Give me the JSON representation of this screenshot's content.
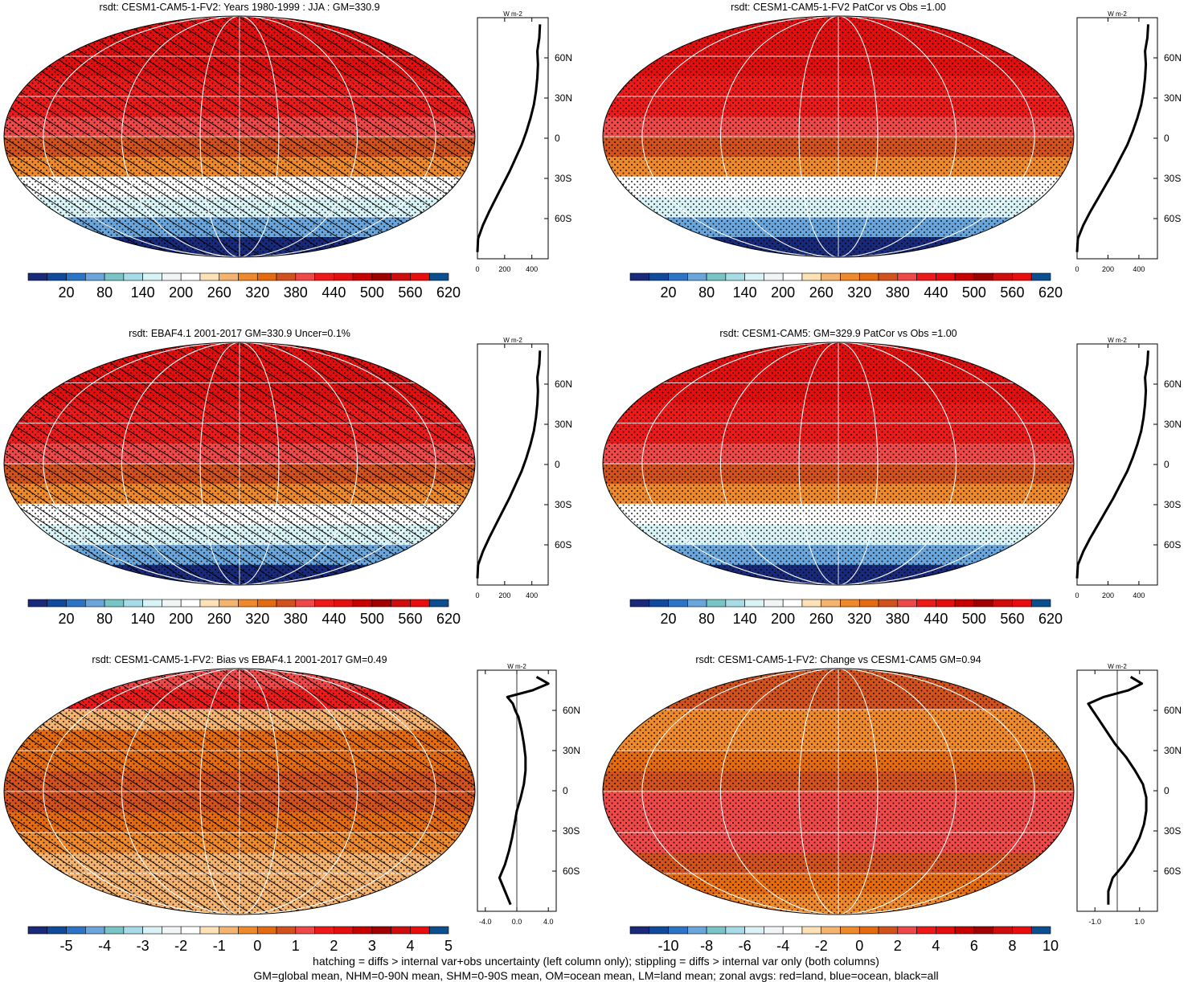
{
  "footnotes": [
    "hatching = diffs > internal var+obs uncertainty (left column only); stippling = diffs > internal var only (both columns)",
    "GM=global mean, NHM=0-90N mean, SHM=0-90S mean, OM=ocean mean, LM=land mean; zonal avgs: red=land, blue=ocean, black=all"
  ],
  "colors": {
    "abs_scale": [
      "#1a2a7a",
      "#0f4a9c",
      "#2c74c5",
      "#6aa6dc",
      "#79c4c6",
      "#a8dbe8",
      "#d8f2f5",
      "#f1f5f6",
      "#ffffff",
      "#fde1b7",
      "#f5b370",
      "#ef8a2c",
      "#e46b10",
      "#d2521e",
      "#ef4848",
      "#ee1a1a",
      "#e40e0e",
      "#c70000",
      "#a10000",
      "#cf0d0d",
      "#e90d0d",
      "#0b4f8f"
    ],
    "diff_scale": [
      "#1a2a7a",
      "#0f4a9c",
      "#2c74c5",
      "#6aa6dc",
      "#79c4c6",
      "#a8dbe8",
      "#d8f2f5",
      "#f1f5f6",
      "#ffffff",
      "#fde1b7",
      "#f5b370",
      "#ef8a2c",
      "#e46b10",
      "#d2521e",
      "#ef4848",
      "#ee1a1a",
      "#e40e0e",
      "#c70000",
      "#a10000",
      "#cf0d0d",
      "#e90d0d",
      "#0b4f8f"
    ]
  },
  "chart_data": [
    {
      "type": "heatmap",
      "title": "rsdt: CESM1-CAM5-1-FV2: Years 1980-1999 : JJA : GM=330.9",
      "colorbar_labels": [
        "20",
        "80",
        "140",
        "200",
        "260",
        "320",
        "380",
        "440",
        "500",
        "560",
        "620"
      ],
      "colorbar_levels": [
        0,
        20,
        50,
        80,
        110,
        140,
        170,
        200,
        230,
        260,
        290,
        320,
        350,
        380,
        410,
        440,
        470,
        500,
        530,
        560,
        590,
        620,
        650
      ],
      "map_rows": [
        {
          "lat": 90,
          "value": 470
        },
        {
          "lat": 75,
          "value": 480
        },
        {
          "lat": 60,
          "value": 470
        },
        {
          "lat": 45,
          "value": 455
        },
        {
          "lat": 30,
          "value": 440
        },
        {
          "lat": 15,
          "value": 410
        },
        {
          "lat": 0,
          "value": 380
        },
        {
          "lat": -15,
          "value": 320
        },
        {
          "lat": -30,
          "value": 250
        },
        {
          "lat": -45,
          "value": 175
        },
        {
          "lat": -60,
          "value": 90
        },
        {
          "lat": -75,
          "value": 15
        },
        {
          "lat": -90,
          "value": 0
        }
      ],
      "hatching": true,
      "stippling": true,
      "profile": {
        "xlabel": "W m-2",
        "xticks": [
          "0",
          "200",
          "400"
        ],
        "xlim": [
          0,
          520
        ],
        "yticks": [
          "60N",
          "30N",
          "0",
          "30S",
          "60S"
        ],
        "lat": [
          85,
          75,
          65,
          55,
          45,
          35,
          25,
          15,
          5,
          -5,
          -15,
          -25,
          -35,
          -45,
          -55,
          -65,
          -75,
          -85
        ],
        "values": [
          460,
          455,
          440,
          445,
          440,
          430,
          415,
          390,
          360,
          325,
          280,
          235,
          185,
          135,
          85,
          40,
          5,
          0
        ]
      }
    },
    {
      "type": "heatmap",
      "title": "rsdt: CESM1-CAM5-1-FV2 PatCor vs Obs =1.00",
      "colorbar_labels": [
        "20",
        "80",
        "140",
        "200",
        "260",
        "320",
        "380",
        "440",
        "500",
        "560",
        "620"
      ],
      "colorbar_levels": [
        0,
        20,
        50,
        80,
        110,
        140,
        170,
        200,
        230,
        260,
        290,
        320,
        350,
        380,
        410,
        440,
        470,
        500,
        530,
        560,
        590,
        620,
        650
      ],
      "map_rows": [
        {
          "lat": 90,
          "value": 470
        },
        {
          "lat": 75,
          "value": 480
        },
        {
          "lat": 60,
          "value": 470
        },
        {
          "lat": 45,
          "value": 455
        },
        {
          "lat": 30,
          "value": 440
        },
        {
          "lat": 15,
          "value": 410
        },
        {
          "lat": 0,
          "value": 380
        },
        {
          "lat": -15,
          "value": 320
        },
        {
          "lat": -30,
          "value": 250
        },
        {
          "lat": -45,
          "value": 175
        },
        {
          "lat": -60,
          "value": 90
        },
        {
          "lat": -75,
          "value": 15
        },
        {
          "lat": -90,
          "value": 0
        }
      ],
      "hatching": false,
      "stippling": true,
      "profile": {
        "xlabel": "W m-2",
        "xticks": [
          "0",
          "200",
          "400"
        ],
        "xlim": [
          0,
          520
        ],
        "yticks": [
          "60N",
          "30N",
          "0",
          "30S",
          "60S"
        ],
        "lat": [
          85,
          75,
          65,
          55,
          45,
          35,
          25,
          15,
          5,
          -5,
          -15,
          -25,
          -35,
          -45,
          -55,
          -65,
          -75,
          -85
        ],
        "values": [
          460,
          455,
          440,
          445,
          440,
          430,
          415,
          390,
          360,
          325,
          280,
          235,
          185,
          135,
          85,
          40,
          5,
          0
        ]
      }
    },
    {
      "type": "heatmap",
      "title": "rsdt: EBAF4.1 2001-2017 GM=330.9 Uncer=0.1%",
      "colorbar_labels": [
        "20",
        "80",
        "140",
        "200",
        "260",
        "320",
        "380",
        "440",
        "500",
        "560",
        "620"
      ],
      "colorbar_levels": [
        0,
        20,
        50,
        80,
        110,
        140,
        170,
        200,
        230,
        260,
        290,
        320,
        350,
        380,
        410,
        440,
        470,
        500,
        530,
        560,
        590,
        620,
        650
      ],
      "map_rows": [
        {
          "lat": 90,
          "value": 470
        },
        {
          "lat": 75,
          "value": 480
        },
        {
          "lat": 60,
          "value": 470
        },
        {
          "lat": 45,
          "value": 455
        },
        {
          "lat": 30,
          "value": 440
        },
        {
          "lat": 15,
          "value": 410
        },
        {
          "lat": 0,
          "value": 380
        },
        {
          "lat": -15,
          "value": 320
        },
        {
          "lat": -30,
          "value": 250
        },
        {
          "lat": -45,
          "value": 175
        },
        {
          "lat": -60,
          "value": 90
        },
        {
          "lat": -75,
          "value": 15
        },
        {
          "lat": -90,
          "value": 0
        }
      ],
      "hatching": true,
      "stippling": true,
      "profile": {
        "xlabel": "W m-2",
        "xticks": [
          "0",
          "200",
          "400"
        ],
        "xlim": [
          0,
          520
        ],
        "yticks": [
          "60N",
          "30N",
          "0",
          "30S",
          "60S"
        ],
        "lat": [
          85,
          75,
          65,
          55,
          45,
          35,
          25,
          15,
          5,
          -5,
          -15,
          -25,
          -35,
          -45,
          -55,
          -65,
          -75,
          -85
        ],
        "values": [
          460,
          455,
          440,
          445,
          440,
          430,
          415,
          390,
          360,
          325,
          280,
          235,
          185,
          135,
          85,
          40,
          5,
          0
        ]
      }
    },
    {
      "type": "heatmap",
      "title": "rsdt: CESM1-CAM5: GM=329.9 PatCor vs Obs =1.00",
      "colorbar_labels": [
        "20",
        "80",
        "140",
        "200",
        "260",
        "320",
        "380",
        "440",
        "500",
        "560",
        "620"
      ],
      "colorbar_levels": [
        0,
        20,
        50,
        80,
        110,
        140,
        170,
        200,
        230,
        260,
        290,
        320,
        350,
        380,
        410,
        440,
        470,
        500,
        530,
        560,
        590,
        620,
        650
      ],
      "map_rows": [
        {
          "lat": 90,
          "value": 470
        },
        {
          "lat": 75,
          "value": 480
        },
        {
          "lat": 60,
          "value": 470
        },
        {
          "lat": 45,
          "value": 455
        },
        {
          "lat": 30,
          "value": 440
        },
        {
          "lat": 15,
          "value": 410
        },
        {
          "lat": 0,
          "value": 380
        },
        {
          "lat": -15,
          "value": 320
        },
        {
          "lat": -30,
          "value": 250
        },
        {
          "lat": -45,
          "value": 175
        },
        {
          "lat": -60,
          "value": 90
        },
        {
          "lat": -75,
          "value": 15
        },
        {
          "lat": -90,
          "value": 0
        }
      ],
      "hatching": false,
      "stippling": true,
      "profile": {
        "xlabel": "W m-2",
        "xticks": [
          "0",
          "200",
          "400"
        ],
        "xlim": [
          0,
          520
        ],
        "yticks": [
          "60N",
          "30N",
          "0",
          "30S",
          "60S"
        ],
        "lat": [
          85,
          75,
          65,
          55,
          45,
          35,
          25,
          15,
          5,
          -5,
          -15,
          -25,
          -35,
          -45,
          -55,
          -65,
          -75,
          -85
        ],
        "values": [
          460,
          455,
          440,
          445,
          440,
          430,
          415,
          390,
          360,
          325,
          280,
          235,
          185,
          135,
          85,
          40,
          5,
          0
        ]
      }
    },
    {
      "type": "heatmap",
      "title": "rsdt: CESM1-CAM5-1-FV2: Bias vs EBAF4.1 2001-2017 GM=0.49",
      "colorbar_labels": [
        "-5",
        "-4",
        "-3",
        "-2",
        "-1",
        "0",
        "1",
        "2",
        "3",
        "4",
        "5"
      ],
      "colorbar_levels": [
        -6,
        -5,
        -4.5,
        -4,
        -3.5,
        -3,
        -2.5,
        -2,
        -1.5,
        -1,
        -0.5,
        0,
        0.5,
        1,
        1.5,
        2,
        2.5,
        3,
        3.5,
        4,
        4.5,
        5,
        6
      ],
      "map_rows": [
        {
          "lat": 90,
          "value": 1.8
        },
        {
          "lat": 75,
          "value": 2.2
        },
        {
          "lat": 60,
          "value": -0.3
        },
        {
          "lat": 45,
          "value": 0.6
        },
        {
          "lat": 30,
          "value": 0.8
        },
        {
          "lat": 15,
          "value": 1.1
        },
        {
          "lat": 0,
          "value": 1.2
        },
        {
          "lat": -15,
          "value": 0.8
        },
        {
          "lat": -30,
          "value": 0.3
        },
        {
          "lat": -45,
          "value": -0.3
        },
        {
          "lat": -60,
          "value": -0.4
        },
        {
          "lat": -75,
          "value": -0.2
        },
        {
          "lat": -90,
          "value": 0
        }
      ],
      "hatching": true,
      "stippling": true,
      "profile": {
        "xlabel": "W m-2",
        "xticks": [
          "-4.0",
          "0.0",
          "4.0"
        ],
        "xlim": [
          -5,
          5
        ],
        "yticks": [
          "60N",
          "30N",
          "0",
          "30S",
          "60S"
        ],
        "lat": [
          85,
          80,
          75,
          70,
          65,
          60,
          55,
          45,
          35,
          25,
          15,
          5,
          -5,
          -15,
          -25,
          -35,
          -45,
          -55,
          -65,
          -75,
          -85
        ],
        "values": [
          2.5,
          4.0,
          2.0,
          -1.2,
          -0.5,
          -0.2,
          0.2,
          0.6,
          0.9,
          1.1,
          1.1,
          0.9,
          0.5,
          0.0,
          -0.3,
          -0.6,
          -1.0,
          -1.5,
          -2.2,
          -1.5,
          -0.8
        ]
      }
    },
    {
      "type": "heatmap",
      "title": "rsdt: CESM1-CAM5-1-FV2: Change vs CESM1-CAM5 GM=0.94",
      "colorbar_labels": [
        "-10",
        "-8",
        "-6",
        "-4",
        "-2",
        "0",
        "2",
        "4",
        "6",
        "8",
        "10"
      ],
      "colorbar_levels": [
        -12,
        -10,
        -9,
        -8,
        -7,
        -6,
        -5,
        -4,
        -3,
        -2,
        -1,
        0,
        1,
        2,
        3,
        4,
        5,
        6,
        7,
        8,
        9,
        10,
        12
      ],
      "map_rows": [
        {
          "lat": 90,
          "value": 2.5
        },
        {
          "lat": 75,
          "value": 2.8
        },
        {
          "lat": 60,
          "value": 0.1
        },
        {
          "lat": 45,
          "value": 0.6
        },
        {
          "lat": 30,
          "value": 1.4
        },
        {
          "lat": 15,
          "value": 2.4
        },
        {
          "lat": 0,
          "value": 3.0
        },
        {
          "lat": -15,
          "value": 3.4
        },
        {
          "lat": -30,
          "value": 3.2
        },
        {
          "lat": -45,
          "value": 2.6
        },
        {
          "lat": -60,
          "value": 1.6
        },
        {
          "lat": -75,
          "value": 0.3
        },
        {
          "lat": -90,
          "value": 0
        }
      ],
      "hatching": false,
      "stippling": true,
      "profile": {
        "xlabel": "W m-2",
        "xticks": [
          "-1.0",
          "1.0"
        ],
        "xlim": [
          -1.8,
          1.8
        ],
        "yticks": [
          "60N",
          "30N",
          "0",
          "30S",
          "60S"
        ],
        "lat": [
          85,
          80,
          75,
          70,
          65,
          60,
          55,
          45,
          35,
          25,
          15,
          5,
          -5,
          -15,
          -25,
          -35,
          -45,
          -55,
          -65,
          -75,
          -85
        ],
        "values": [
          0.6,
          1.1,
          0.5,
          -0.6,
          -1.3,
          -1.1,
          -0.9,
          -0.5,
          -0.1,
          0.4,
          0.8,
          1.15,
          1.3,
          1.3,
          1.2,
          1.0,
          0.7,
          0.3,
          -0.2,
          -0.4,
          -0.4
        ]
      }
    }
  ]
}
